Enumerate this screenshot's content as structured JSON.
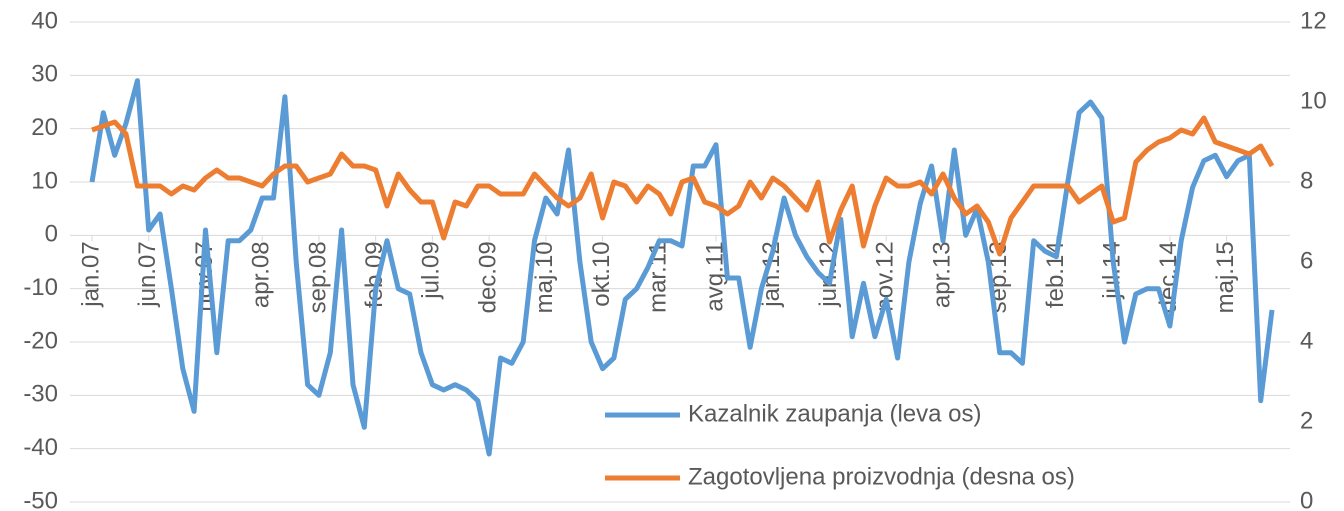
{
  "chart_data": {
    "type": "line",
    "categories": [
      "jan.07",
      null,
      null,
      null,
      null,
      "jun.07",
      null,
      null,
      null,
      null,
      "nov.07",
      null,
      null,
      null,
      null,
      "apr.08",
      null,
      null,
      null,
      null,
      "sep.08",
      null,
      null,
      null,
      null,
      "feb.09",
      null,
      null,
      null,
      null,
      "jul.09",
      null,
      null,
      null,
      null,
      "dec.09",
      null,
      null,
      null,
      null,
      "maj.10",
      null,
      null,
      null,
      null,
      "okt.10",
      null,
      null,
      null,
      null,
      "mar.11",
      null,
      null,
      null,
      null,
      "avg.11",
      null,
      null,
      null,
      null,
      "jan.12",
      null,
      null,
      null,
      null,
      "jun.12",
      null,
      null,
      null,
      null,
      "nov.12",
      null,
      null,
      null,
      null,
      "apr.13",
      null,
      null,
      null,
      null,
      "sep.13",
      null,
      null,
      null,
      null,
      "feb.14",
      null,
      null,
      null,
      null,
      "jul.14",
      null,
      null,
      null,
      null,
      "dec.14",
      null,
      null,
      null,
      null,
      "maj.15",
      null,
      null,
      null,
      null
    ],
    "series": [
      {
        "name": "Kazalnik zaupanja (leva os)",
        "color": "#5b9bd5",
        "axis": "y",
        "values": [
          10,
          23,
          15,
          21,
          29,
          1,
          4,
          -10,
          -25,
          -33,
          1,
          -22,
          -1,
          -1,
          1,
          7,
          7,
          26,
          -5,
          -28,
          -30,
          -22,
          1,
          -28,
          -36,
          -10,
          -1,
          -10,
          -11,
          -22,
          -28,
          -29,
          -28,
          -29,
          -31,
          -41,
          -23,
          -24,
          -20,
          -1,
          7,
          4,
          16,
          -5,
          -20,
          -25,
          -23,
          -12,
          -10,
          -6,
          -1,
          -1,
          -2,
          13,
          13,
          17,
          -8,
          -8,
          -21,
          -10,
          -3,
          7,
          0,
          -4,
          -7,
          -9,
          3,
          -19,
          -9,
          -19,
          -12,
          -23,
          -5,
          6,
          13,
          -1,
          16,
          0,
          5,
          -5,
          -22,
          -22,
          -24,
          -1,
          -3,
          -4,
          10,
          23,
          25,
          22,
          -5,
          -20,
          -11,
          -10,
          -10,
          -17,
          -1,
          9,
          14,
          15,
          11,
          14,
          15,
          -31,
          -14
        ]
      },
      {
        "name": "Zagotovljena proizvodnja (desna os)",
        "color": "#ed7d31",
        "axis": "y2",
        "values": [
          9.3,
          9.4,
          9.5,
          9.2,
          7.9,
          7.9,
          7.9,
          7.7,
          7.9,
          7.8,
          8.1,
          8.3,
          8.1,
          8.1,
          8.0,
          7.9,
          8.2,
          8.4,
          8.4,
          8.0,
          8.1,
          8.2,
          8.7,
          8.4,
          8.4,
          8.3,
          7.4,
          8.2,
          7.8,
          7.5,
          7.5,
          6.6,
          7.5,
          7.4,
          7.9,
          7.9,
          7.7,
          7.7,
          7.7,
          8.2,
          7.9,
          7.6,
          7.4,
          7.6,
          8.2,
          7.1,
          8.0,
          7.9,
          7.5,
          7.9,
          7.7,
          7.2,
          8.0,
          8.1,
          7.5,
          7.4,
          7.2,
          7.4,
          8.0,
          7.6,
          8.1,
          7.9,
          7.6,
          7.3,
          8.0,
          6.5,
          7.3,
          7.9,
          6.4,
          7.4,
          8.1,
          7.9,
          7.9,
          8.0,
          7.7,
          8.2,
          7.6,
          7.2,
          7.4,
          7.0,
          6.2,
          7.1,
          7.5,
          7.9,
          7.9,
          7.9,
          7.9,
          7.5,
          7.7,
          7.9,
          7.0,
          7.1,
          8.5,
          8.8,
          9.0,
          9.1,
          9.3,
          9.2,
          9.6,
          9.0,
          8.9,
          8.8,
          8.7,
          8.9,
          8.4
        ]
      }
    ],
    "ylim": [
      -50,
      40
    ],
    "yticks": [
      -50,
      -40,
      -30,
      -20,
      -10,
      0,
      10,
      20,
      30,
      40
    ],
    "y2lim": [
      0,
      12
    ],
    "y2ticks": [
      0,
      2,
      4,
      6,
      8,
      10,
      12
    ],
    "grid": true,
    "legend": "lower right"
  }
}
